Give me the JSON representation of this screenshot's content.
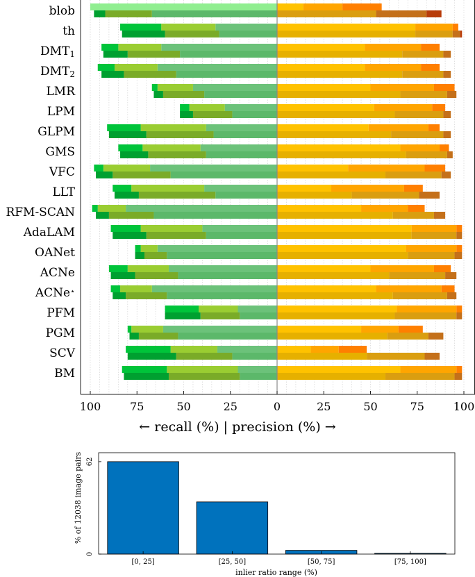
{
  "chart_data": [
    {
      "type": "bar",
      "orientation": "horizontal",
      "xlabel": "← recall (%) | precision (%) →",
      "xticks": [
        100,
        75,
        50,
        25,
        0,
        25,
        50,
        75,
        100
      ],
      "xlim": [
        -100,
        100
      ],
      "grid": true,
      "threshold_levels": 4,
      "colors": {
        "recall_upper": [
          "#00c43a",
          "#9acd32",
          "#6cc27a",
          "#90ee90"
        ],
        "recall_lower": [
          "#00a030",
          "#7aab28",
          "#5cb86a",
          "#7dd495"
        ],
        "precision_upper": [
          "#ffc200",
          "#ffa500",
          "#ff7f00",
          "#ff4500"
        ],
        "precision_lower": [
          "#e6b000",
          "#da9e10",
          "#c4701a",
          "#b83c0a"
        ]
      },
      "categories": [
        {
          "name": "blob",
          "sub": ""
        },
        {
          "name": "th",
          "sub": ""
        },
        {
          "name": "DMT",
          "sub": "1"
        },
        {
          "name": "DMT",
          "sub": "2"
        },
        {
          "name": "LMR",
          "sub": ""
        },
        {
          "name": "LPM",
          "sub": ""
        },
        {
          "name": "GLPM",
          "sub": ""
        },
        {
          "name": "GMS",
          "sub": ""
        },
        {
          "name": "VFC",
          "sub": ""
        },
        {
          "name": "LLT",
          "sub": ""
        },
        {
          "name": "RFM-SCAN",
          "sub": ""
        },
        {
          "name": "AdaLAM",
          "sub": ""
        },
        {
          "name": "OANet",
          "sub": ""
        },
        {
          "name": "ACNe",
          "sub": ""
        },
        {
          "name": "ACNe",
          "sub": "⋆"
        },
        {
          "name": "PFM",
          "sub": ""
        },
        {
          "name": "PGM",
          "sub": ""
        },
        {
          "name": "SCV",
          "sub": ""
        },
        {
          "name": "BM",
          "sub": ""
        }
      ],
      "series": [
        {
          "name": "recall_upper",
          "values": [
            [
              null,
              null,
              null,
              100
            ],
            [
              84,
              62,
              33,
              0
            ],
            [
              94,
              85,
              62,
              0
            ],
            [
              96,
              87,
              64,
              0
            ],
            [
              67,
              64,
              45,
              0
            ],
            [
              52,
              47,
              28,
              0
            ],
            [
              91,
              73,
              38,
              0
            ],
            [
              85,
              72,
              41,
              0
            ],
            [
              98,
              93,
              68,
              0
            ],
            [
              88,
              78,
              39,
              0
            ],
            [
              99,
              96,
              81,
              0
            ],
            [
              89,
              73,
              40,
              0
            ],
            [
              76,
              73,
              64,
              0
            ],
            [
              90,
              80,
              58,
              0
            ],
            [
              89,
              84,
              67,
              0
            ],
            [
              60,
              42,
              21,
              0
            ],
            [
              80,
              78,
              61,
              0
            ],
            [
              81,
              57,
              32,
              0
            ],
            [
              83,
              59,
              21,
              0
            ]
          ]
        },
        {
          "name": "recall_lower",
          "values": [
            [
              98,
              92,
              67,
              0
            ],
            [
              83,
              60,
              31,
              0
            ],
            [
              93,
              80,
              52,
              0
            ],
            [
              94,
              82,
              54,
              0
            ],
            [
              66,
              61,
              39,
              0
            ],
            [
              52,
              45,
              24,
              0
            ],
            [
              90,
              70,
              34,
              0
            ],
            [
              84,
              69,
              38,
              0
            ],
            [
              97,
              88,
              57,
              0
            ],
            [
              87,
              74,
              33,
              0
            ],
            [
              97,
              90,
              66,
              0
            ],
            [
              88,
              70,
              38,
              0
            ],
            [
              76,
              71,
              59,
              0
            ],
            [
              89,
              76,
              53,
              0
            ],
            [
              88,
              81,
              59,
              0
            ],
            [
              60,
              41,
              20,
              0
            ],
            [
              79,
              74,
              53,
              0
            ],
            [
              80,
              54,
              24,
              0
            ],
            [
              82,
              58,
              20,
              0
            ]
          ]
        },
        {
          "name": "precision_upper",
          "values": [
            [
              14,
              35,
              56,
              null
            ],
            [
              74,
              94,
              97,
              null
            ],
            [
              47,
              77,
              87,
              null
            ],
            [
              47,
              77,
              87,
              null
            ],
            [
              50,
              84,
              95,
              null
            ],
            [
              52,
              83,
              90,
              null
            ],
            [
              49,
              81,
              87,
              null
            ],
            [
              66,
              87,
              92,
              null
            ],
            [
              38,
              79,
              90,
              null
            ],
            [
              29,
              68,
              78,
              null
            ],
            [
              45,
              70,
              79,
              null
            ],
            [
              72,
              96,
              99,
              null
            ],
            [
              69,
              96,
              99,
              null
            ],
            [
              50,
              84,
              93,
              null
            ],
            [
              53,
              88,
              95,
              null
            ],
            [
              64,
              96,
              99,
              null
            ],
            [
              45,
              65,
              78,
              null
            ],
            [
              18,
              33,
              48,
              null
            ],
            [
              66,
              96,
              99,
              null
            ]
          ]
        },
        {
          "name": "precision_lower",
          "values": [
            [
              null,
              53,
              80,
              88
            ],
            [
              74,
              94,
              98,
              99
            ],
            [
              67,
              89,
              93,
              null
            ],
            [
              67,
              89,
              93,
              null
            ],
            [
              66,
              91,
              96,
              null
            ],
            [
              63,
              89,
              93,
              null
            ],
            [
              61,
              89,
              93,
              null
            ],
            [
              69,
              91,
              94,
              null
            ],
            [
              58,
              88,
              93,
              null
            ],
            [
              40,
              76,
              87,
              null
            ],
            [
              62,
              84,
              90,
              null
            ],
            [
              72,
              96,
              99,
              null
            ],
            [
              70,
              95,
              99,
              null
            ],
            [
              60,
              90,
              96,
              null
            ],
            [
              62,
              91,
              96,
              null
            ],
            [
              63,
              96,
              99,
              null
            ],
            [
              59,
              81,
              89,
              null
            ],
            [
              48,
              79,
              87,
              null
            ],
            [
              58,
              95,
              99,
              null
            ]
          ]
        }
      ]
    },
    {
      "type": "bar",
      "categories": [
        "[0, 25]",
        "[25, 50]",
        "[50, 75]",
        "[75, 100]"
      ],
      "values": [
        62,
        35,
        2.5,
        0.5
      ],
      "xlabel": "inlier ratio range (%)",
      "ylabel": "% of 12038 image pairs",
      "ylim": [
        0,
        68
      ],
      "yticks": [
        0,
        62
      ],
      "color": "#0072bd"
    }
  ]
}
